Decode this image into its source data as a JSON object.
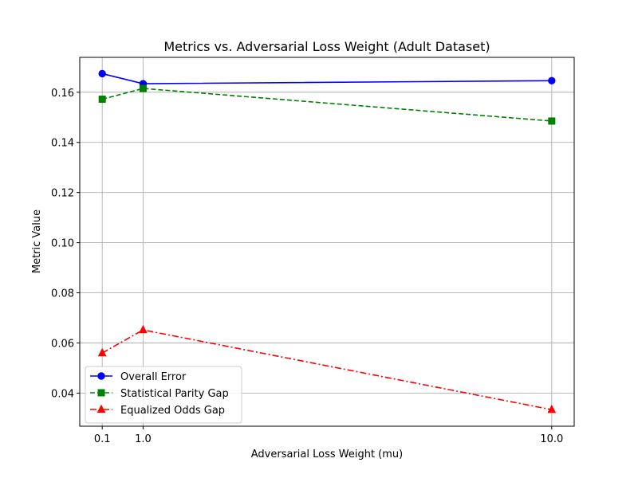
{
  "chart_data": {
    "type": "line",
    "title": "Metrics vs. Adversarial Loss Weight (Adult Dataset)",
    "xlabel": "Adversarial Loss Weight (mu)",
    "ylabel": "Metric Value",
    "x": [
      0.1,
      1.0,
      10.0
    ],
    "x_tick_labels": [
      "0.1",
      "1.0",
      "10.0"
    ],
    "xlim": [
      -0.395,
      10.495
    ],
    "ylim": [
      0.0268,
      0.1739
    ],
    "y_ticks": [
      0.04,
      0.06,
      0.08,
      0.1,
      0.12,
      0.14,
      0.16
    ],
    "y_tick_labels": [
      "0.04",
      "0.06",
      "0.08",
      "0.10",
      "0.12",
      "0.14",
      "0.16"
    ],
    "grid": true,
    "legend_position": "lower-left",
    "series": [
      {
        "name": "Overall Error",
        "values": [
          0.1674,
          0.1634,
          0.1646
        ],
        "color": "#0000ff",
        "marker": "circle",
        "linestyle": "solid"
      },
      {
        "name": "Statistical Parity Gap",
        "values": [
          0.1572,
          0.1615,
          0.1485
        ],
        "color": "#008000",
        "marker": "square",
        "linestyle": "dashed"
      },
      {
        "name": "Equalized Odds Gap",
        "values": [
          0.056,
          0.0652,
          0.0334
        ],
        "color": "#ff0000",
        "marker": "triangle",
        "linestyle": "dashdot"
      }
    ]
  }
}
